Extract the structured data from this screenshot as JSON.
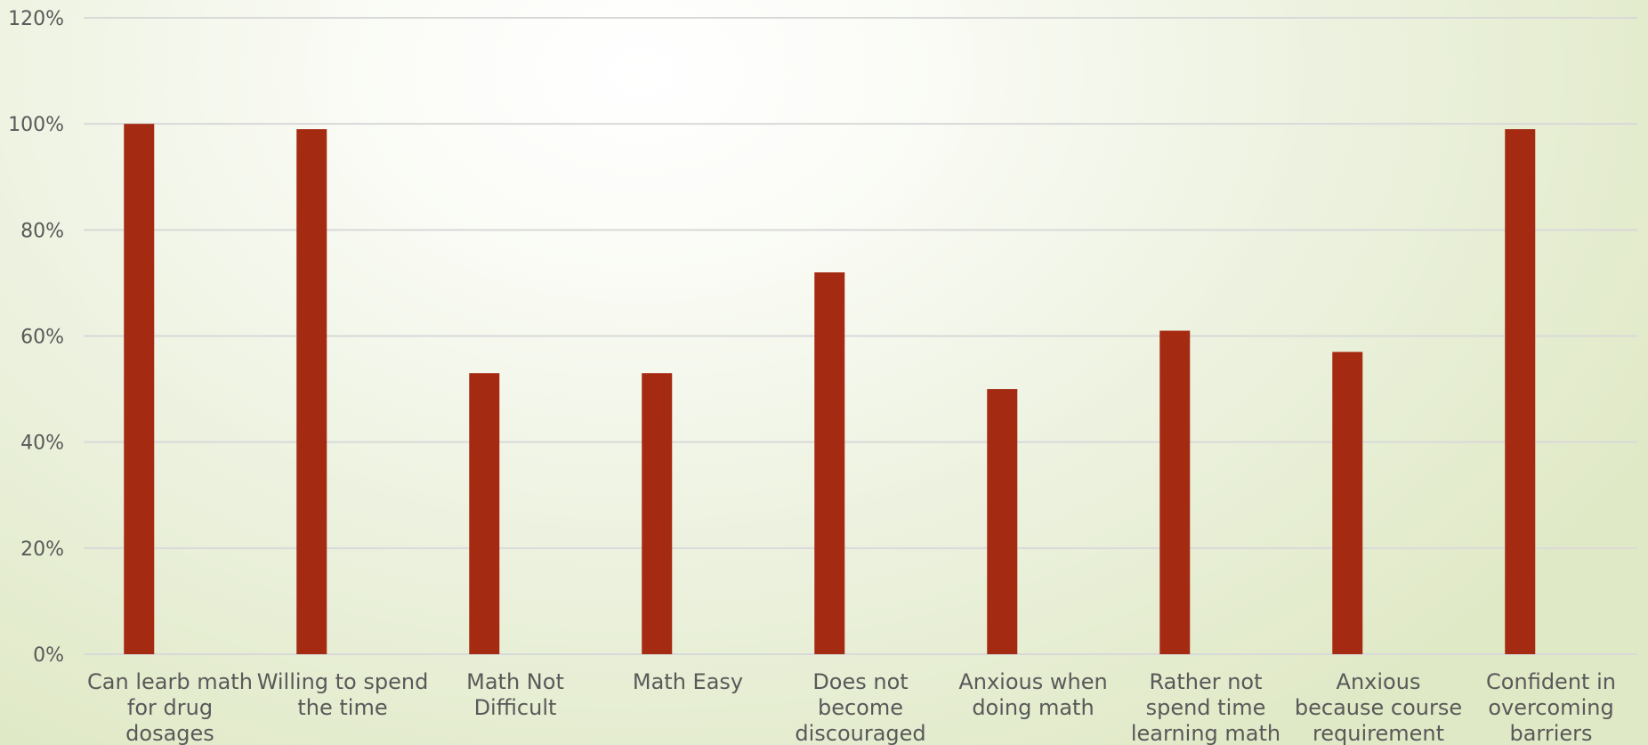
{
  "chart_data": {
    "type": "bar",
    "categories": [
      [
        "Can learb math",
        "for drug",
        "dosages"
      ],
      [
        "Willing to spend",
        "the time"
      ],
      [
        "Math Not",
        "Difficult"
      ],
      [
        "Math Easy"
      ],
      [
        "Does not",
        "become",
        "discouraged"
      ],
      [
        "Anxious when",
        "doing math"
      ],
      [
        "Rather not",
        "spend time",
        "learning math"
      ],
      [
        "Anxious",
        "because course",
        "requirement"
      ],
      [
        "Confident in",
        "overcoming",
        "barriers"
      ]
    ],
    "values": [
      100,
      99,
      53,
      53,
      72,
      50,
      61,
      57,
      99
    ],
    "ylim": [
      0,
      120
    ],
    "yticks": [
      "0%",
      "20%",
      "40%",
      "60%",
      "80%",
      "100%",
      "120%"
    ],
    "grid": true,
    "bar_color": "#A52A12",
    "grid_color": "#D9D9D9"
  }
}
